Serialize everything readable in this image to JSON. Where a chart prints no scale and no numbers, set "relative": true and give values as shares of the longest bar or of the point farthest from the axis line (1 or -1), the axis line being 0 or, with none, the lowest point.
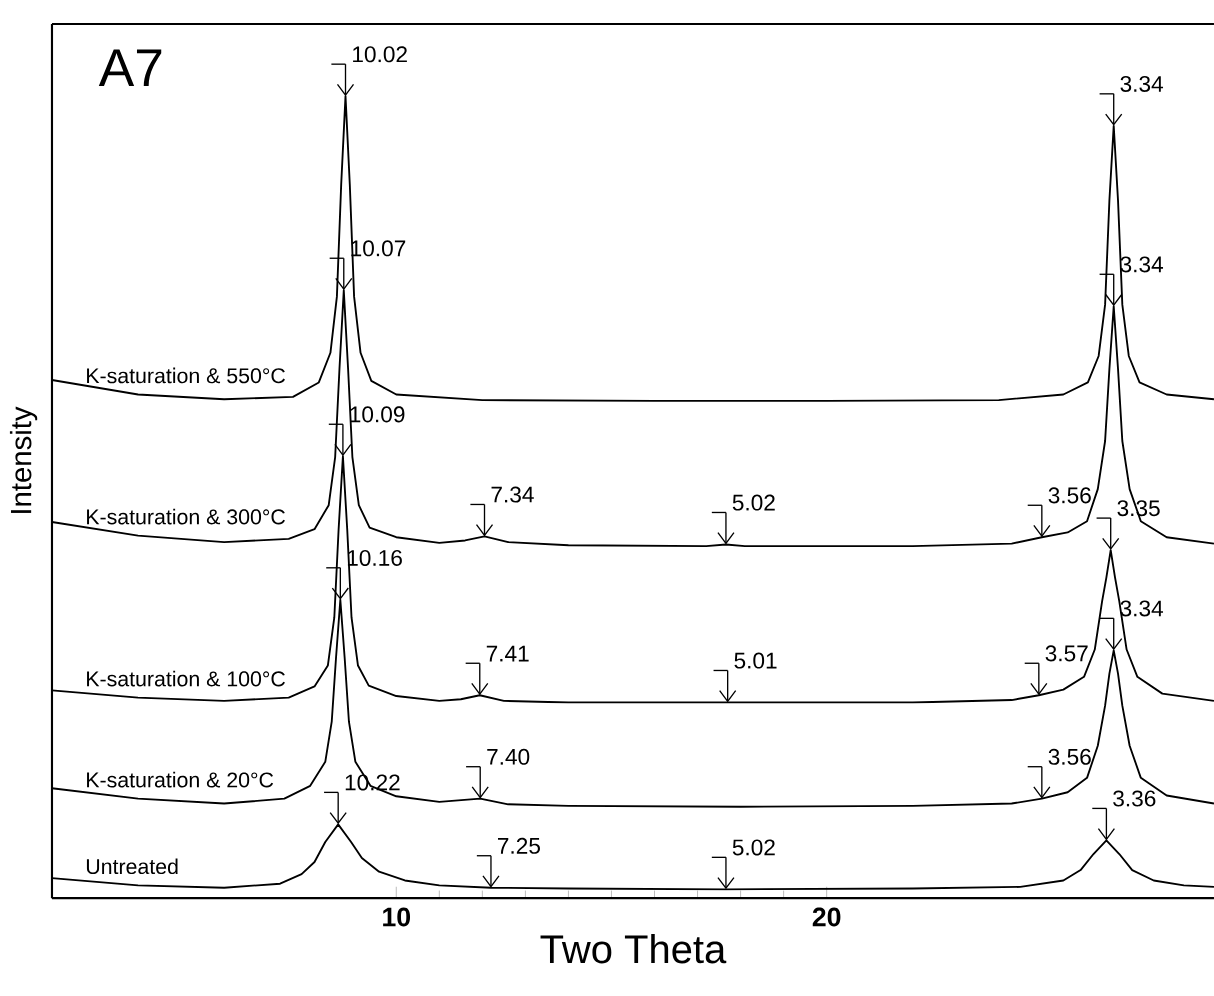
{
  "chart_data": {
    "type": "line",
    "xlabel": "Two Theta",
    "ylabel": "Intensity",
    "relative": true,
    "marker": "none",
    "line_style": "solid",
    "xlim": [
      2,
      29
    ],
    "xticks": [
      10,
      20
    ],
    "annotations": [
      "A7",
      {
        "text": "10.02",
        "x": 8.82,
        "y": 1.0
      },
      {
        "text": "3.34",
        "x": 26.67,
        "y": 0.963
      },
      {
        "text": "10.07",
        "x": 8.78,
        "y": 0.758
      },
      {
        "text": "3.34",
        "x": 26.67,
        "y": 0.738
      },
      {
        "text": "7.34",
        "x": 12.05,
        "y": 0.451
      },
      {
        "text": "5.02",
        "x": 17.66,
        "y": 0.441
      },
      {
        "text": "3.56",
        "x": 25.0,
        "y": 0.45
      },
      {
        "text": "10.09",
        "x": 8.76,
        "y": 0.551
      },
      {
        "text": "3.35",
        "x": 26.6,
        "y": 0.434
      },
      {
        "text": "7.41",
        "x": 11.94,
        "y": 0.253
      },
      {
        "text": "5.01",
        "x": 17.7,
        "y": 0.244
      },
      {
        "text": "3.57",
        "x": 24.93,
        "y": 0.253
      },
      {
        "text": "10.16",
        "x": 8.7,
        "y": 0.372
      },
      {
        "text": "3.34",
        "x": 26.67,
        "y": 0.309
      },
      {
        "text": "7.40",
        "x": 11.95,
        "y": 0.124
      },
      {
        "text": "3.56",
        "x": 25.0,
        "y": 0.124
      },
      {
        "text": "10.22",
        "x": 8.65,
        "y": 0.092
      },
      {
        "text": "3.36",
        "x": 26.5,
        "y": 0.072
      },
      {
        "text": "7.25",
        "x": 12.2,
        "y": 0.013
      },
      {
        "text": "5.02",
        "x": 17.66,
        "y": 0.011
      }
    ],
    "series": [
      {
        "name": "K-saturation & 550°C",
        "color": "#000000",
        "x": [
          2,
          4,
          6,
          7.6,
          8.2,
          8.47,
          8.62,
          8.72,
          8.82,
          8.92,
          9.02,
          9.17,
          9.42,
          10,
          12,
          16,
          20,
          24,
          25.5,
          26.07,
          26.32,
          26.47,
          26.57,
          26.67,
          26.77,
          26.87,
          27.02,
          27.27,
          27.9,
          29
        ],
        "values": [
          0.646,
          0.628,
          0.622,
          0.625,
          0.643,
          0.68,
          0.75,
          0.89,
          1.0,
          0.89,
          0.75,
          0.68,
          0.645,
          0.628,
          0.621,
          0.62,
          0.62,
          0.621,
          0.628,
          0.643,
          0.676,
          0.74,
          0.87,
          0.963,
          0.87,
          0.74,
          0.676,
          0.643,
          0.628,
          0.622
        ]
      },
      {
        "name": "K-saturation & 300°C",
        "color": "#000000",
        "x": [
          2,
          4,
          6,
          7.5,
          8.1,
          8.43,
          8.58,
          8.68,
          8.78,
          8.88,
          8.98,
          9.13,
          9.38,
          10,
          11,
          11.6,
          12.05,
          12.6,
          14,
          17.2,
          17.66,
          18.1,
          22,
          24.3,
          25.0,
          25.6,
          26.05,
          26.3,
          26.47,
          26.57,
          26.67,
          26.77,
          26.87,
          27.04,
          27.3,
          27.9,
          29
        ],
        "values": [
          0.469,
          0.452,
          0.444,
          0.448,
          0.46,
          0.49,
          0.55,
          0.66,
          0.758,
          0.66,
          0.55,
          0.49,
          0.462,
          0.45,
          0.443,
          0.446,
          0.451,
          0.444,
          0.44,
          0.439,
          0.441,
          0.439,
          0.439,
          0.442,
          0.45,
          0.456,
          0.47,
          0.51,
          0.57,
          0.66,
          0.738,
          0.66,
          0.57,
          0.51,
          0.47,
          0.45,
          0.442
        ]
      },
      {
        "name": "K-saturation & 100°C",
        "color": "#000000",
        "x": [
          2,
          4,
          6,
          7.5,
          8.1,
          8.41,
          8.56,
          8.66,
          8.76,
          8.86,
          8.96,
          9.11,
          9.36,
          10,
          11,
          11.5,
          11.94,
          12.5,
          14,
          17.7,
          22,
          24.3,
          24.93,
          25.5,
          25.98,
          26.23,
          26.4,
          26.5,
          26.6,
          26.7,
          26.8,
          26.97,
          27.22,
          27.8,
          29
        ],
        "values": [
          0.259,
          0.25,
          0.246,
          0.25,
          0.264,
          0.29,
          0.35,
          0.46,
          0.551,
          0.46,
          0.35,
          0.29,
          0.265,
          0.252,
          0.246,
          0.248,
          0.253,
          0.246,
          0.244,
          0.244,
          0.244,
          0.247,
          0.253,
          0.26,
          0.276,
          0.31,
          0.37,
          0.4,
          0.434,
          0.4,
          0.37,
          0.31,
          0.276,
          0.255,
          0.246
        ]
      },
      {
        "name": "K-saturation & 20°C",
        "color": "#000000",
        "x": [
          2,
          4,
          6,
          7.4,
          8.0,
          8.35,
          8.5,
          8.6,
          8.7,
          8.8,
          8.9,
          9.05,
          9.4,
          10,
          11,
          11.95,
          12.6,
          14,
          18,
          22,
          24.3,
          25.0,
          25.6,
          26.05,
          26.3,
          26.47,
          26.57,
          26.67,
          26.77,
          26.87,
          27.04,
          27.3,
          27.9,
          29
        ],
        "values": [
          0.137,
          0.124,
          0.118,
          0.124,
          0.14,
          0.17,
          0.22,
          0.3,
          0.372,
          0.3,
          0.22,
          0.17,
          0.14,
          0.127,
          0.12,
          0.124,
          0.117,
          0.115,
          0.114,
          0.115,
          0.118,
          0.124,
          0.132,
          0.15,
          0.19,
          0.24,
          0.28,
          0.309,
          0.28,
          0.24,
          0.19,
          0.15,
          0.128,
          0.118
        ]
      },
      {
        "name": "Untreated",
        "color": "#000000",
        "x": [
          2,
          4,
          6,
          7.3,
          7.8,
          8.1,
          8.35,
          8.65,
          8.95,
          9.2,
          9.6,
          10.2,
          11,
          12.2,
          14,
          17.66,
          22,
          24.5,
          25.5,
          25.9,
          26.2,
          26.5,
          26.8,
          27.1,
          27.6,
          28.3,
          29
        ],
        "values": [
          0.025,
          0.016,
          0.013,
          0.018,
          0.03,
          0.045,
          0.07,
          0.092,
          0.07,
          0.05,
          0.033,
          0.022,
          0.016,
          0.013,
          0.012,
          0.011,
          0.012,
          0.014,
          0.022,
          0.035,
          0.055,
          0.072,
          0.055,
          0.035,
          0.022,
          0.016,
          0.014
        ]
      }
    ]
  }
}
